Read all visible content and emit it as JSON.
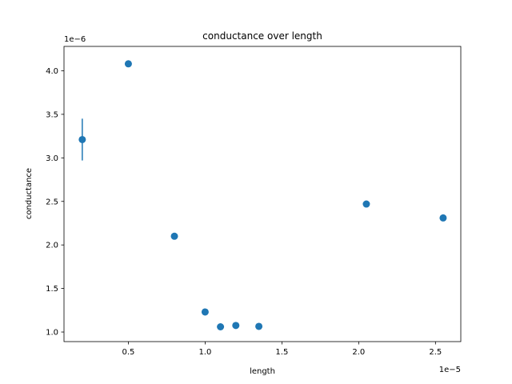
{
  "chart_data": {
    "type": "scatter",
    "title": "conductance over length",
    "xlabel": "length",
    "ylabel": "conductance",
    "x_offset_label": "1e−5",
    "y_offset_label": "1e−6",
    "x_scale": 1e-05,
    "y_scale": 1e-06,
    "xlim": [
      0.081,
      2.665
    ],
    "ylim": [
      0.89,
      4.28
    ],
    "x_ticks": [
      0.5,
      1.0,
      1.5,
      2.0,
      2.5
    ],
    "x_tick_labels": [
      "0.5",
      "1.0",
      "1.5",
      "2.0",
      "2.5"
    ],
    "y_ticks": [
      1.0,
      1.5,
      2.0,
      2.5,
      3.0,
      3.5,
      4.0
    ],
    "y_tick_labels": [
      "1.0",
      "1.5",
      "2.0",
      "2.5",
      "3.0",
      "3.5",
      "4.0"
    ],
    "grid": false,
    "color": "#1f77b4",
    "points": [
      {
        "x": 2e-06,
        "y": 3.21e-06,
        "yerr": 2.4e-07
      },
      {
        "x": 5e-06,
        "y": 4.08e-06,
        "yerr": 1e-08
      },
      {
        "x": 8e-06,
        "y": 2.1e-06,
        "yerr": 0
      },
      {
        "x": 1e-05,
        "y": 1.23e-06,
        "yerr": 0
      },
      {
        "x": 1.1e-05,
        "y": 1.06e-06,
        "yerr": 0
      },
      {
        "x": 1.2e-05,
        "y": 1.075e-06,
        "yerr": 0
      },
      {
        "x": 1.35e-05,
        "y": 1.065e-06,
        "yerr": 0
      },
      {
        "x": 2.05e-05,
        "y": 2.47e-06,
        "yerr": 0
      },
      {
        "x": 2.55e-05,
        "y": 2.31e-06,
        "yerr": 0
      }
    ]
  }
}
